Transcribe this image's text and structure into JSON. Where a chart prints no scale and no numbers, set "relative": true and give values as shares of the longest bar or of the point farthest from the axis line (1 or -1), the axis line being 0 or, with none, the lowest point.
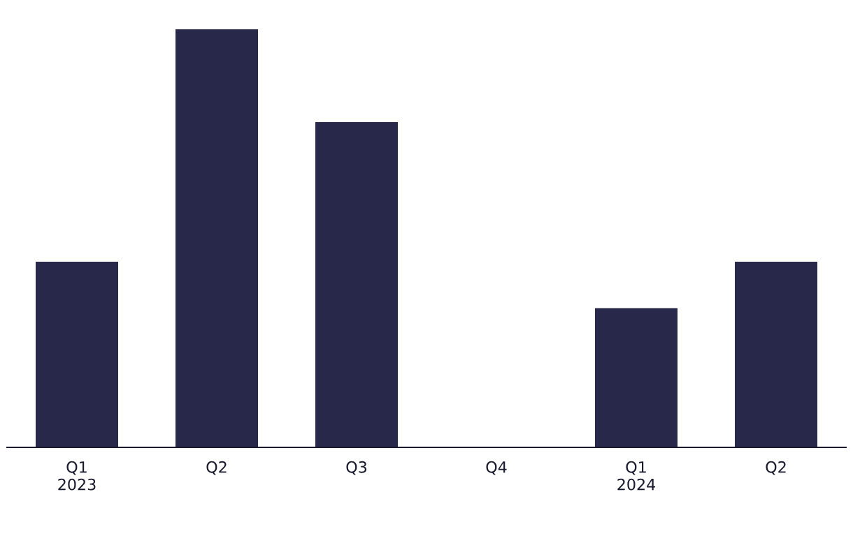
{
  "chart_data": {
    "type": "bar",
    "relative": true,
    "categories": [
      "Q1\n2023",
      "Q2",
      "Q3",
      "Q4",
      "Q1\n2024",
      "Q2"
    ],
    "values": [
      0.444,
      1,
      0.778,
      0,
      0.333,
      0.444
    ],
    "color": "#28284a",
    "grid": false,
    "legend": false
  }
}
